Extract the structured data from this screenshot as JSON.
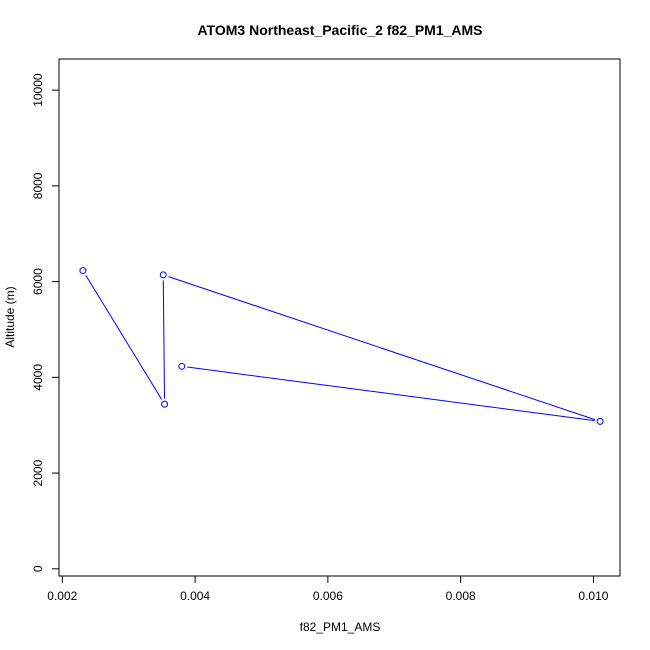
{
  "chart_data": {
    "type": "line",
    "title": "ATOM3 Northeast_Pacific_2 f82_PM1_AMS",
    "xlabel": "f82_PM1_AMS",
    "ylabel": "Altitude (m)",
    "xlim": [
      0.00195,
      0.0104
    ],
    "ylim": [
      -150,
      10650
    ],
    "x_ticks": [
      0.002,
      0.004,
      0.006,
      0.008,
      0.01
    ],
    "x_tick_labels": [
      "0.002",
      "0.004",
      "0.006",
      "0.008",
      "0.010"
    ],
    "y_ticks": [
      0,
      2000,
      4000,
      6000,
      8000,
      10000
    ],
    "y_tick_labels": [
      "0",
      "2000",
      "4000",
      "6000",
      "8000",
      "10000"
    ],
    "grid": false,
    "series": [
      {
        "color": "#0000ff",
        "marker": "open-circle",
        "points": [
          {
            "x": 0.00231,
            "y": 6230
          },
          {
            "x": 0.00354,
            "y": 3440
          },
          {
            "x": 0.00352,
            "y": 6140
          },
          {
            "x": 0.0101,
            "y": 3080
          },
          {
            "x": 0.0038,
            "y": 4230
          }
        ]
      }
    ]
  }
}
